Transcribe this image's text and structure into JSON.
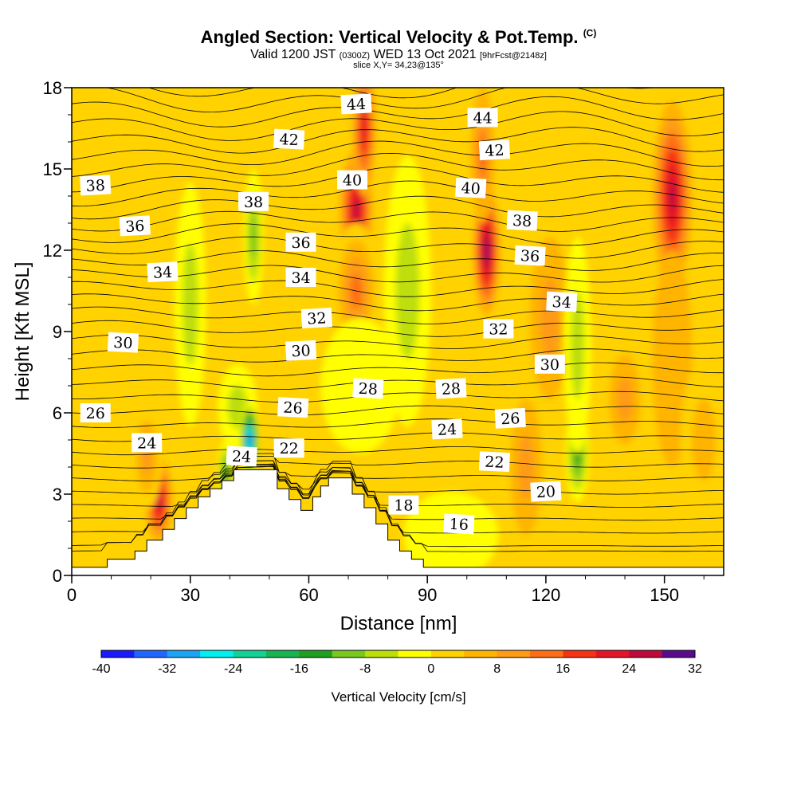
{
  "header": {
    "title": "Angled Section: Vertical Velocity & Pot.Temp.",
    "title_mark": "(C)",
    "valid_prefix": "Valid 1200 JST",
    "valid_utc": "(0300Z)",
    "valid_date": "WED 13 Oct 2021",
    "forecast": "[9hrFcst@2148z]",
    "slice": "slice X,Y= 34,23@135°"
  },
  "chart_data": {
    "type": "heatmap",
    "title": "Angled Section: Vertical Velocity & Pot.Temp.",
    "xlabel": "Distance [nm]",
    "ylabel": "Height [Kft MSL]",
    "xlim": [
      0,
      165
    ],
    "ylim": [
      0,
      18
    ],
    "x_ticks": [
      "0",
      "30",
      "60",
      "90",
      "120",
      "150"
    ],
    "y_ticks": [
      "0",
      "3",
      "6",
      "9",
      "12",
      "15",
      "18"
    ],
    "colorbar": {
      "label": "Vertical Velocity [cm/s]",
      "tick_labels": [
        "-40",
        "-32",
        "-24",
        "-16",
        "-8",
        "0",
        "8",
        "16",
        "24",
        "32"
      ],
      "levels": [
        -40,
        -36,
        -32,
        -28,
        -24,
        -20,
        -16,
        -12,
        -8,
        -4,
        0,
        4,
        8,
        12,
        16,
        20,
        24,
        28,
        32
      ],
      "colors": [
        "#1a1aff",
        "#1f66ff",
        "#19a4f5",
        "#00f0f0",
        "#14d296",
        "#18b450",
        "#1ea01e",
        "#78c81e",
        "#bede0a",
        "#ffff00",
        "#ffd200",
        "#ffb400",
        "#ff9b14",
        "#ff6e14",
        "#f53214",
        "#e61428",
        "#be0a3c",
        "#960a64",
        "#5a0a8c"
      ]
    },
    "vertical_velocity_cells": [
      {
        "x": 10,
        "y": 9.0,
        "sx": 10,
        "sy": 4.0,
        "value": 2
      },
      {
        "x": 22,
        "y": 2.8,
        "sx": 3.5,
        "sy": 1.6,
        "value": 24
      },
      {
        "x": 19,
        "y": 4.4,
        "sx": 4,
        "sy": 2.0,
        "value": 10
      },
      {
        "x": 30,
        "y": 10.0,
        "sx": 4,
        "sy": 4.5,
        "value": -6
      },
      {
        "x": 42,
        "y": 6.2,
        "sx": 5,
        "sy": 1.6,
        "value": -8
      },
      {
        "x": 45,
        "y": 5.0,
        "sx": 2.4,
        "sy": 1.4,
        "value": -36
      },
      {
        "x": 39,
        "y": 3.8,
        "sx": 2.0,
        "sy": 1.2,
        "value": -16
      },
      {
        "x": 46,
        "y": 12.5,
        "sx": 2.5,
        "sy": 2.5,
        "value": -10
      },
      {
        "x": 72,
        "y": 13.5,
        "sx": 5,
        "sy": 2.6,
        "value": 26
      },
      {
        "x": 74,
        "y": 16.5,
        "sx": 3,
        "sy": 2.5,
        "value": 20
      },
      {
        "x": 72,
        "y": 10.5,
        "sx": 6,
        "sy": 2.5,
        "value": 14
      },
      {
        "x": 73,
        "y": 7.0,
        "sx": 10,
        "sy": 2.5,
        "value": -4
      },
      {
        "x": 85,
        "y": 10.5,
        "sx": 6,
        "sy": 5.0,
        "value": -6
      },
      {
        "x": 105,
        "y": 12.0,
        "sx": 4,
        "sy": 2.8,
        "value": 30
      },
      {
        "x": 104,
        "y": 15.5,
        "sx": 3,
        "sy": 2.5,
        "value": 12
      },
      {
        "x": 121,
        "y": 9.5,
        "sx": 5,
        "sy": 3.0,
        "value": 8
      },
      {
        "x": 128,
        "y": 4.5,
        "sx": 3,
        "sy": 1.8,
        "value": -14
      },
      {
        "x": 128,
        "y": 8.5,
        "sx": 3.5,
        "sy": 4.0,
        "value": -6
      },
      {
        "x": 140,
        "y": 6.5,
        "sx": 6,
        "sy": 2.5,
        "value": 10
      },
      {
        "x": 115,
        "y": 4.0,
        "sx": 4,
        "sy": 2.5,
        "value": 8
      },
      {
        "x": 152,
        "y": 14.0,
        "sx": 5,
        "sy": 3.5,
        "value": 24
      },
      {
        "x": 152,
        "y": 8.0,
        "sx": 5,
        "sy": 4.0,
        "value": 4
      },
      {
        "x": 160,
        "y": 5.0,
        "sx": 6,
        "sy": 3.0,
        "value": 6
      },
      {
        "x": 96,
        "y": 1.5,
        "sx": 12,
        "sy": 1.6,
        "value": -2
      }
    ],
    "potential_temperature_labels": [
      {
        "text": "44",
        "x": 72,
        "y": 17.4
      },
      {
        "text": "44",
        "x": 104,
        "y": 16.9
      },
      {
        "text": "42",
        "x": 55,
        "y": 16.1
      },
      {
        "text": "42",
        "x": 107,
        "y": 15.7
      },
      {
        "text": "40",
        "x": 71,
        "y": 14.6
      },
      {
        "text": "40",
        "x": 101,
        "y": 14.3
      },
      {
        "text": "38",
        "x": 6,
        "y": 14.4
      },
      {
        "text": "38",
        "x": 46,
        "y": 13.8
      },
      {
        "text": "38",
        "x": 114,
        "y": 13.1
      },
      {
        "text": "36",
        "x": 16,
        "y": 12.9
      },
      {
        "text": "36",
        "x": 58,
        "y": 12.3
      },
      {
        "text": "36",
        "x": 116,
        "y": 11.8
      },
      {
        "text": "34",
        "x": 23,
        "y": 11.2
      },
      {
        "text": "34",
        "x": 58,
        "y": 11.0
      },
      {
        "text": "34",
        "x": 124,
        "y": 10.1
      },
      {
        "text": "32",
        "x": 62,
        "y": 9.5
      },
      {
        "text": "32",
        "x": 108,
        "y": 9.1
      },
      {
        "text": "30",
        "x": 13,
        "y": 8.6
      },
      {
        "text": "30",
        "x": 58,
        "y": 8.3
      },
      {
        "text": "30",
        "x": 121,
        "y": 7.8
      },
      {
        "text": "28",
        "x": 75,
        "y": 6.9
      },
      {
        "text": "28",
        "x": 96,
        "y": 6.9
      },
      {
        "text": "26",
        "x": 6,
        "y": 6.0
      },
      {
        "text": "26",
        "x": 56,
        "y": 6.2
      },
      {
        "text": "26",
        "x": 111,
        "y": 5.8
      },
      {
        "text": "24",
        "x": 19,
        "y": 4.9
      },
      {
        "text": "24",
        "x": 43,
        "y": 4.4
      },
      {
        "text": "24",
        "x": 95,
        "y": 5.4
      },
      {
        "text": "22",
        "x": 55,
        "y": 4.7
      },
      {
        "text": "22",
        "x": 107,
        "y": 4.2
      },
      {
        "text": "20",
        "x": 120,
        "y": 3.1
      },
      {
        "text": "18",
        "x": 84,
        "y": 2.6
      },
      {
        "text": "16",
        "x": 98,
        "y": 1.9
      }
    ],
    "terrain_profile": [
      [
        0,
        0.3
      ],
      [
        9,
        0.3
      ],
      [
        9,
        0.6
      ],
      [
        16,
        0.6
      ],
      [
        16,
        0.9
      ],
      [
        19,
        0.9
      ],
      [
        19,
        1.3
      ],
      [
        23,
        1.3
      ],
      [
        23,
        1.7
      ],
      [
        26,
        1.7
      ],
      [
        26,
        2.1
      ],
      [
        29,
        2.1
      ],
      [
        29,
        2.5
      ],
      [
        32,
        2.5
      ],
      [
        32,
        2.9
      ],
      [
        35,
        2.9
      ],
      [
        35,
        3.2
      ],
      [
        38,
        3.2
      ],
      [
        38,
        3.5
      ],
      [
        41,
        3.5
      ],
      [
        41,
        3.9
      ],
      [
        52,
        3.9
      ],
      [
        52,
        3.2
      ],
      [
        55,
        3.2
      ],
      [
        55,
        2.8
      ],
      [
        58,
        2.8
      ],
      [
        58,
        2.4
      ],
      [
        61,
        2.4
      ],
      [
        61,
        2.9
      ],
      [
        63,
        2.9
      ],
      [
        63,
        3.3
      ],
      [
        65,
        3.3
      ],
      [
        65,
        3.6
      ],
      [
        71,
        3.6
      ],
      [
        71,
        3.0
      ],
      [
        74,
        3.0
      ],
      [
        74,
        2.5
      ],
      [
        77,
        2.5
      ],
      [
        77,
        1.9
      ],
      [
        80,
        1.9
      ],
      [
        80,
        1.3
      ],
      [
        83,
        1.3
      ],
      [
        83,
        0.9
      ],
      [
        86,
        0.9
      ],
      [
        86,
        0.6
      ],
      [
        89,
        0.6
      ],
      [
        89,
        0.3
      ],
      [
        165,
        0.3
      ]
    ]
  }
}
